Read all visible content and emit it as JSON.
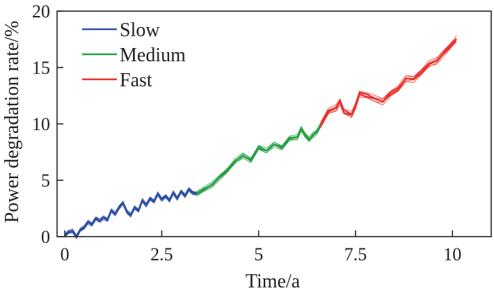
{
  "chart_data": {
    "type": "line",
    "xlabel": "Time/a",
    "ylabel": "Power degradation rate/%",
    "xlim": [
      -0.2,
      11
    ],
    "ylim": [
      0,
      20
    ],
    "xticks": [
      0,
      2.5,
      5,
      7.5,
      10
    ],
    "xtick_labels": [
      "0",
      "2.5",
      "5",
      "7.5",
      "10"
    ],
    "yticks": [
      0,
      5,
      10,
      15,
      20
    ],
    "ytick_labels": [
      "0",
      "5",
      "10",
      "15",
      "20"
    ],
    "legend_position": "top-left",
    "series": [
      {
        "name": "Slow",
        "color": "#2b4fa3",
        "x": [
          0,
          0.1,
          0.2,
          0.3,
          0.4,
          0.5,
          0.6,
          0.7,
          0.8,
          0.9,
          1.0,
          1.1,
          1.2,
          1.3,
          1.4,
          1.5,
          1.6,
          1.7,
          1.8,
          1.9,
          2.0,
          2.1,
          2.2,
          2.3,
          2.4,
          2.5,
          2.6,
          2.7,
          2.8,
          2.9,
          3.0,
          3.1,
          3.2,
          3.3,
          3.4
        ],
        "values": [
          0.1,
          0.4,
          0.5,
          0.0,
          0.6,
          0.8,
          1.3,
          1.1,
          1.6,
          1.4,
          1.7,
          1.5,
          2.3,
          2.0,
          2.6,
          3.0,
          2.2,
          1.9,
          2.6,
          2.3,
          3.2,
          2.8,
          3.4,
          3.1,
          3.8,
          3.3,
          3.6,
          3.2,
          3.9,
          3.4,
          4.0,
          3.6,
          4.2,
          3.9,
          3.8
        ],
        "band": 0.3
      },
      {
        "name": "Medium",
        "color": "#27a045",
        "x": [
          3.4,
          3.6,
          3.8,
          4.0,
          4.2,
          4.4,
          4.6,
          4.8,
          5.0,
          5.2,
          5.4,
          5.6,
          5.8,
          6.0,
          6.1,
          6.2,
          6.3,
          6.4,
          6.5,
          6.6
        ],
        "values": [
          3.8,
          4.2,
          4.6,
          5.3,
          5.9,
          6.7,
          7.2,
          6.8,
          7.9,
          7.6,
          8.2,
          7.9,
          8.7,
          8.8,
          9.6,
          9.0,
          8.6,
          9.0,
          9.3,
          9.9
        ],
        "band": 0.4
      },
      {
        "name": "Fast",
        "color": "#e8312a",
        "x": [
          6.6,
          6.8,
          7.0,
          7.1,
          7.2,
          7.4,
          7.5,
          7.6,
          7.8,
          8.0,
          8.2,
          8.4,
          8.6,
          8.8,
          9.0,
          9.2,
          9.4,
          9.6,
          9.8,
          10.0,
          10.1
        ],
        "values": [
          9.9,
          11.1,
          11.4,
          12.0,
          11.1,
          10.8,
          11.6,
          12.7,
          12.5,
          12.2,
          12.0,
          12.7,
          13.1,
          14.0,
          14.0,
          14.6,
          15.3,
          15.6,
          16.4,
          17.1,
          17.5
        ],
        "band": 0.5
      }
    ]
  }
}
